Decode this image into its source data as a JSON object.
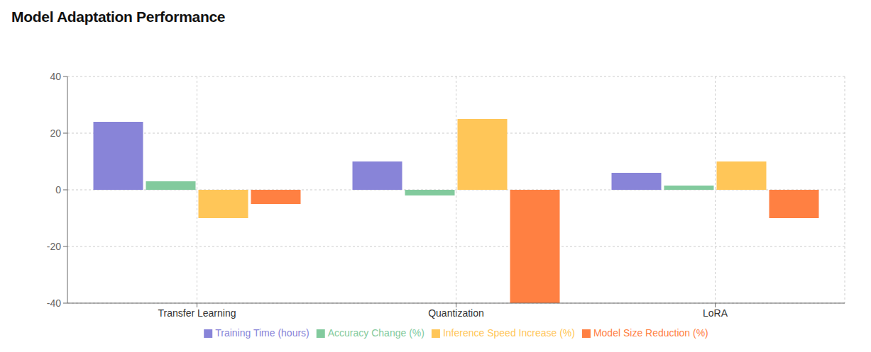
{
  "chart_data": {
    "type": "bar",
    "title": "Model Adaptation Performance",
    "categories": [
      "Transfer Learning",
      "Quantization",
      "LoRA"
    ],
    "series": [
      {
        "name": "Training Time (hours)",
        "color": "#8884d8",
        "values": [
          24,
          10,
          6
        ]
      },
      {
        "name": "Accuracy Change (%)",
        "color": "#82ca9d",
        "values": [
          3,
          -2,
          1.5
        ]
      },
      {
        "name": "Inference Speed Increase (%)",
        "color": "#ffc658",
        "values": [
          -10,
          25,
          10
        ]
      },
      {
        "name": "Model Size Reduction (%)",
        "color": "#ff8042",
        "values": [
          -5,
          -40,
          -10
        ]
      }
    ],
    "ylim": [
      -40,
      40
    ],
    "yticks": [
      -40,
      -20,
      0,
      20,
      40
    ],
    "grid": true,
    "legend": "bottom"
  }
}
